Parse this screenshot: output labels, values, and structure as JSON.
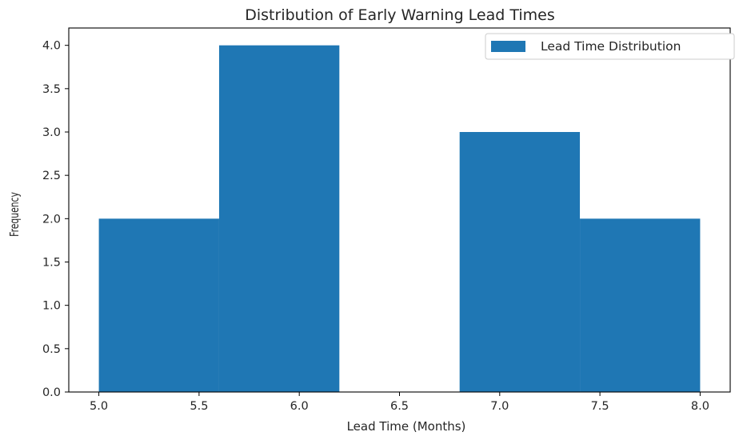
{
  "chart_data": {
    "type": "bar",
    "title": "Distribution of Early Warning Lead Times",
    "xlabel": "Lead Time (Months)",
    "ylabel": "Frequency",
    "xlim": [
      4.85,
      8.15
    ],
    "ylim": [
      0,
      4.2
    ],
    "xticks": [
      5.0,
      5.5,
      6.0,
      6.5,
      7.0,
      7.5,
      8.0
    ],
    "xtick_labels": [
      "5.0",
      "5.5",
      "6.0",
      "6.5",
      "7.0",
      "7.5",
      "8.0"
    ],
    "yticks": [
      0,
      0.5,
      1.0,
      1.5,
      2.0,
      2.5,
      3.0,
      3.5,
      4.0
    ],
    "ytick_labels": [
      "0.0",
      "0.5",
      "1.0",
      "1.5",
      "2.0",
      "2.5",
      "3.0",
      "3.5",
      "4.0"
    ],
    "bin_edges": [
      5.0,
      5.6,
      6.2,
      6.8,
      7.4,
      8.0
    ],
    "series": [
      {
        "name": "Lead Time Distribution",
        "values": [
          2,
          4,
          0,
          3,
          2
        ],
        "color": "#1f77b4"
      }
    ],
    "legend": "top-right",
    "grid": false
  }
}
